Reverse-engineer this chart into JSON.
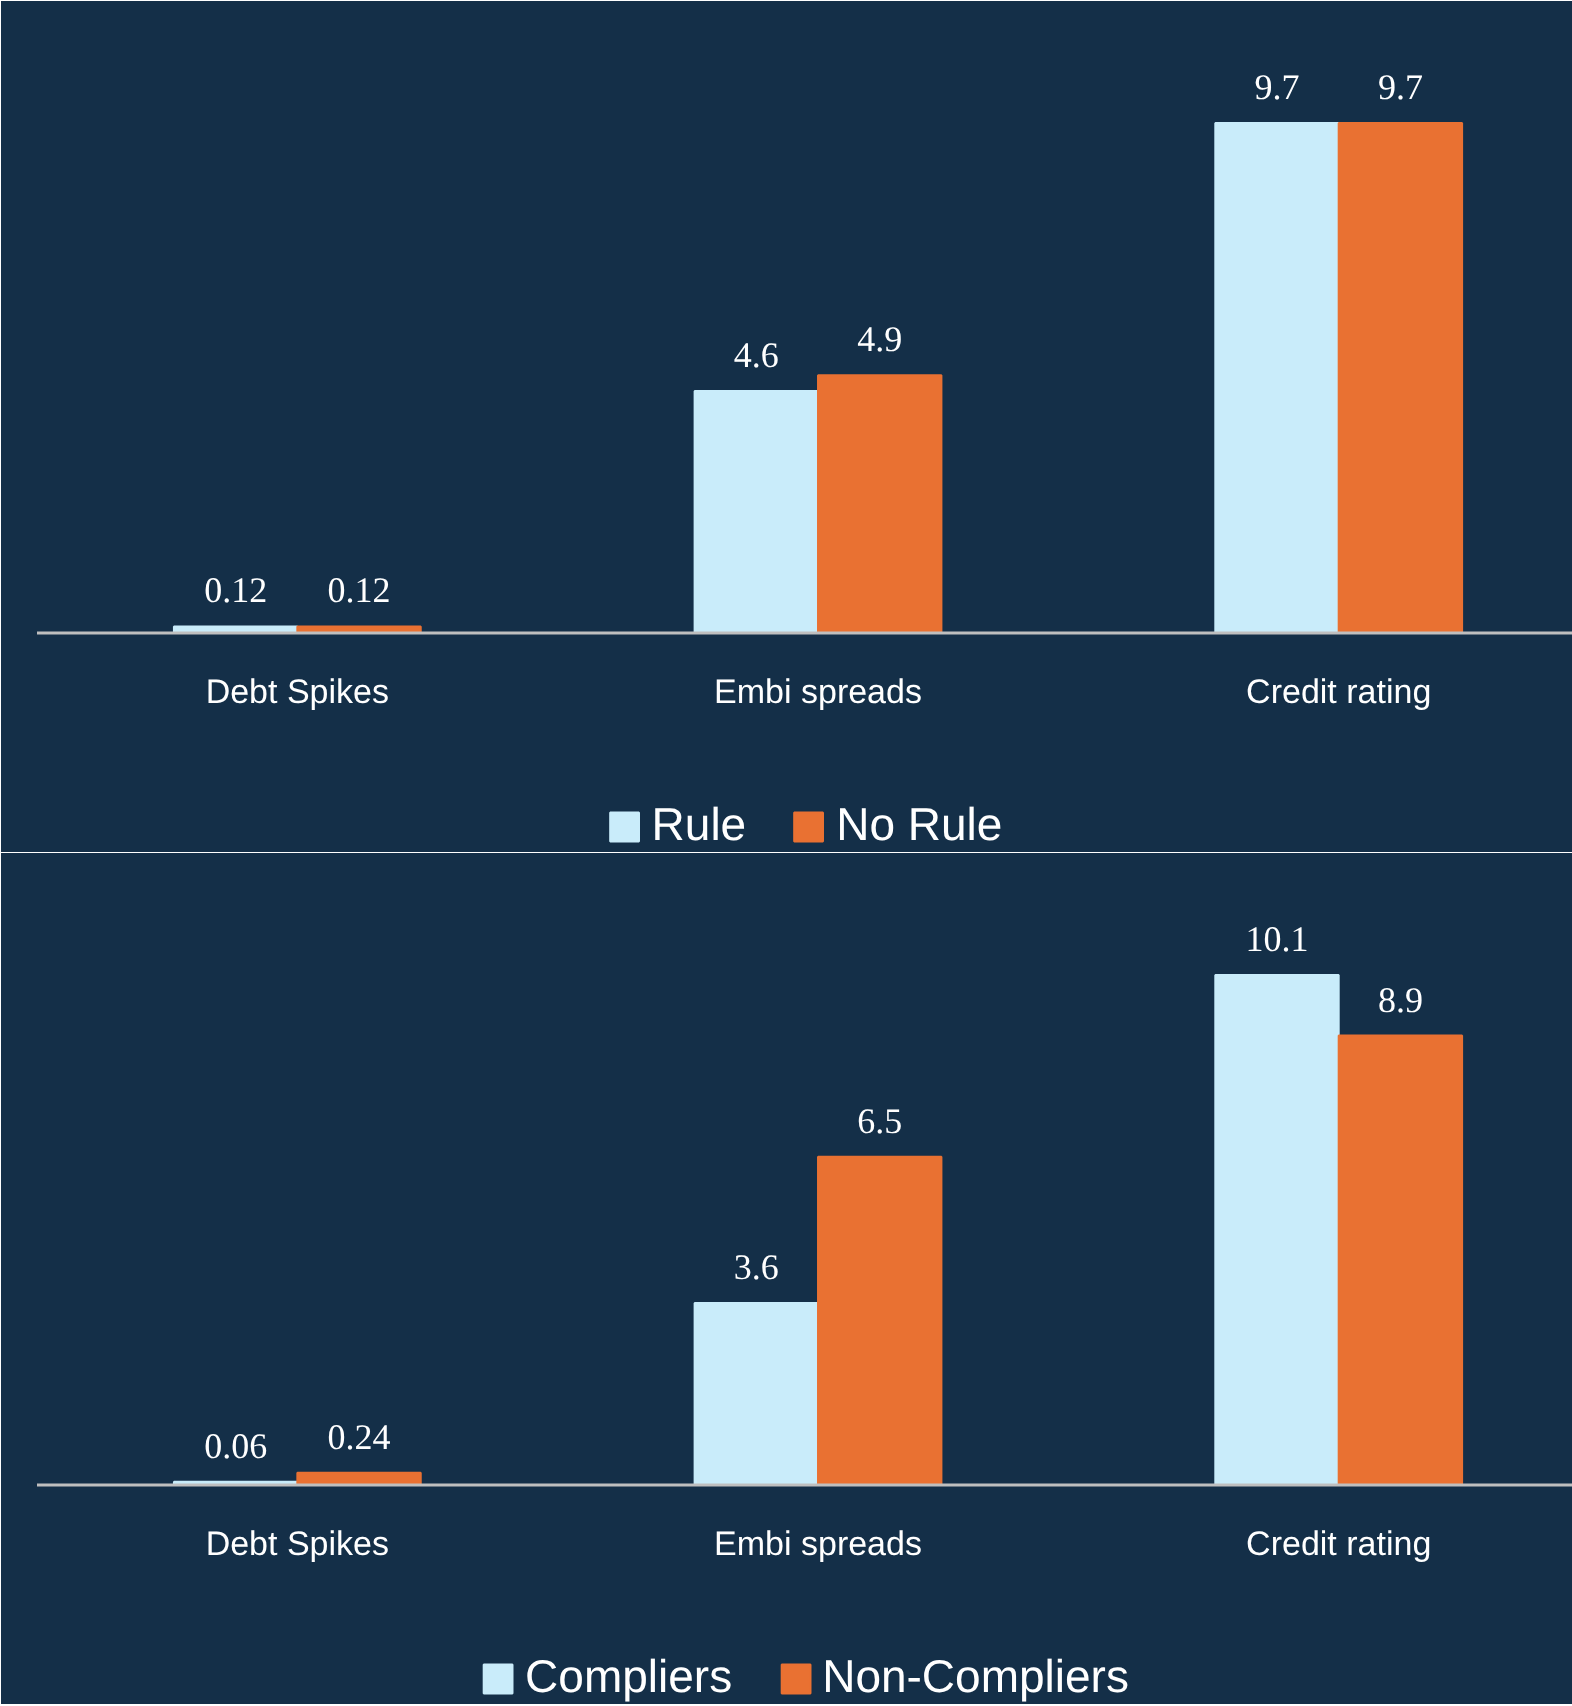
{
  "chart_data": [
    {
      "type": "bar",
      "categories": [
        "Debt Spikes",
        "Embi spreads",
        "Credit rating"
      ],
      "data_labels": true,
      "legend": "bottom",
      "grid": false,
      "series": [
        {
          "name": "Rule",
          "color": "#c9ecfa",
          "values": [
            0.12,
            4.6,
            9.7
          ]
        },
        {
          "name": "No Rule",
          "color": "#e97132",
          "values": [
            0.12,
            4.9,
            9.7
          ]
        }
      ]
    },
    {
      "type": "bar",
      "categories": [
        "Debt Spikes",
        "Embi spreads",
        "Credit rating"
      ],
      "data_labels": true,
      "legend": "bottom",
      "grid": false,
      "series": [
        {
          "name": "Compliers",
          "color": "#c9ecfa",
          "values": [
            0.06,
            3.6,
            10.1
          ]
        },
        {
          "name": "Non-Compliers",
          "color": "#e97132",
          "values": [
            0.24,
            6.5,
            8.9
          ]
        }
      ]
    }
  ]
}
